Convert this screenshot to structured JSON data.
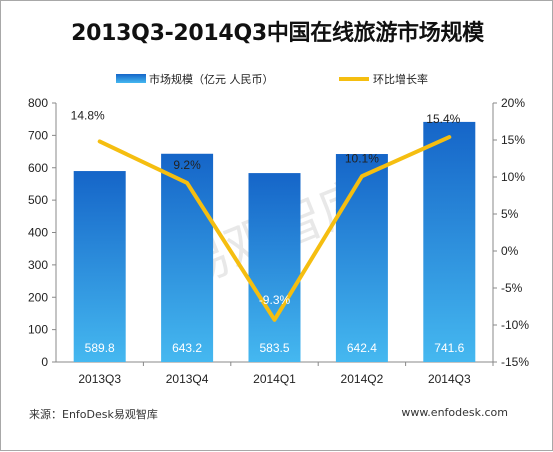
{
  "chart_data": {
    "type": "bar",
    "title": "2013Q3-2014Q3中国在线旅游市场规模",
    "categories": [
      "2013Q3",
      "2013Q4",
      "2014Q1",
      "2014Q2",
      "2014Q3"
    ],
    "series": [
      {
        "name": "市场规模（亿元 人民币）",
        "type": "bar",
        "axis": "left",
        "values": [
          589.8,
          643.2,
          583.5,
          642.4,
          741.6
        ],
        "labels": [
          "589.8",
          "643.2",
          "583.5",
          "642.4",
          "741.6"
        ],
        "color": "#1e88d6"
      },
      {
        "name": "环比增长率",
        "type": "line",
        "axis": "right",
        "values": [
          14.8,
          9.2,
          -9.3,
          10.1,
          15.4
        ],
        "labels": [
          "14.8%",
          "9.2%",
          "-9.3%",
          "10.1%",
          "15.4%"
        ],
        "color": "#f5be10"
      }
    ],
    "y_left": {
      "ylim": [
        0,
        800
      ],
      "ticks": [
        0,
        100,
        200,
        300,
        400,
        500,
        600,
        700,
        800
      ],
      "tick_labels": [
        "0",
        "100",
        "200",
        "300",
        "400",
        "500",
        "600",
        "700",
        "800"
      ]
    },
    "y_right": {
      "ylim": [
        -15,
        20
      ],
      "ticks": [
        -15,
        -10,
        -5,
        0,
        5,
        10,
        15,
        20
      ],
      "tick_labels": [
        "-15%",
        "-10%",
        "-5%",
        "0%",
        "5%",
        "10%",
        "15%",
        "20%"
      ]
    },
    "legend_position": "top",
    "grid": false,
    "watermark": "易观智库"
  },
  "footer": {
    "source": "来源：EnfoDesk易观智库",
    "site": "www.enfodesk.com"
  }
}
